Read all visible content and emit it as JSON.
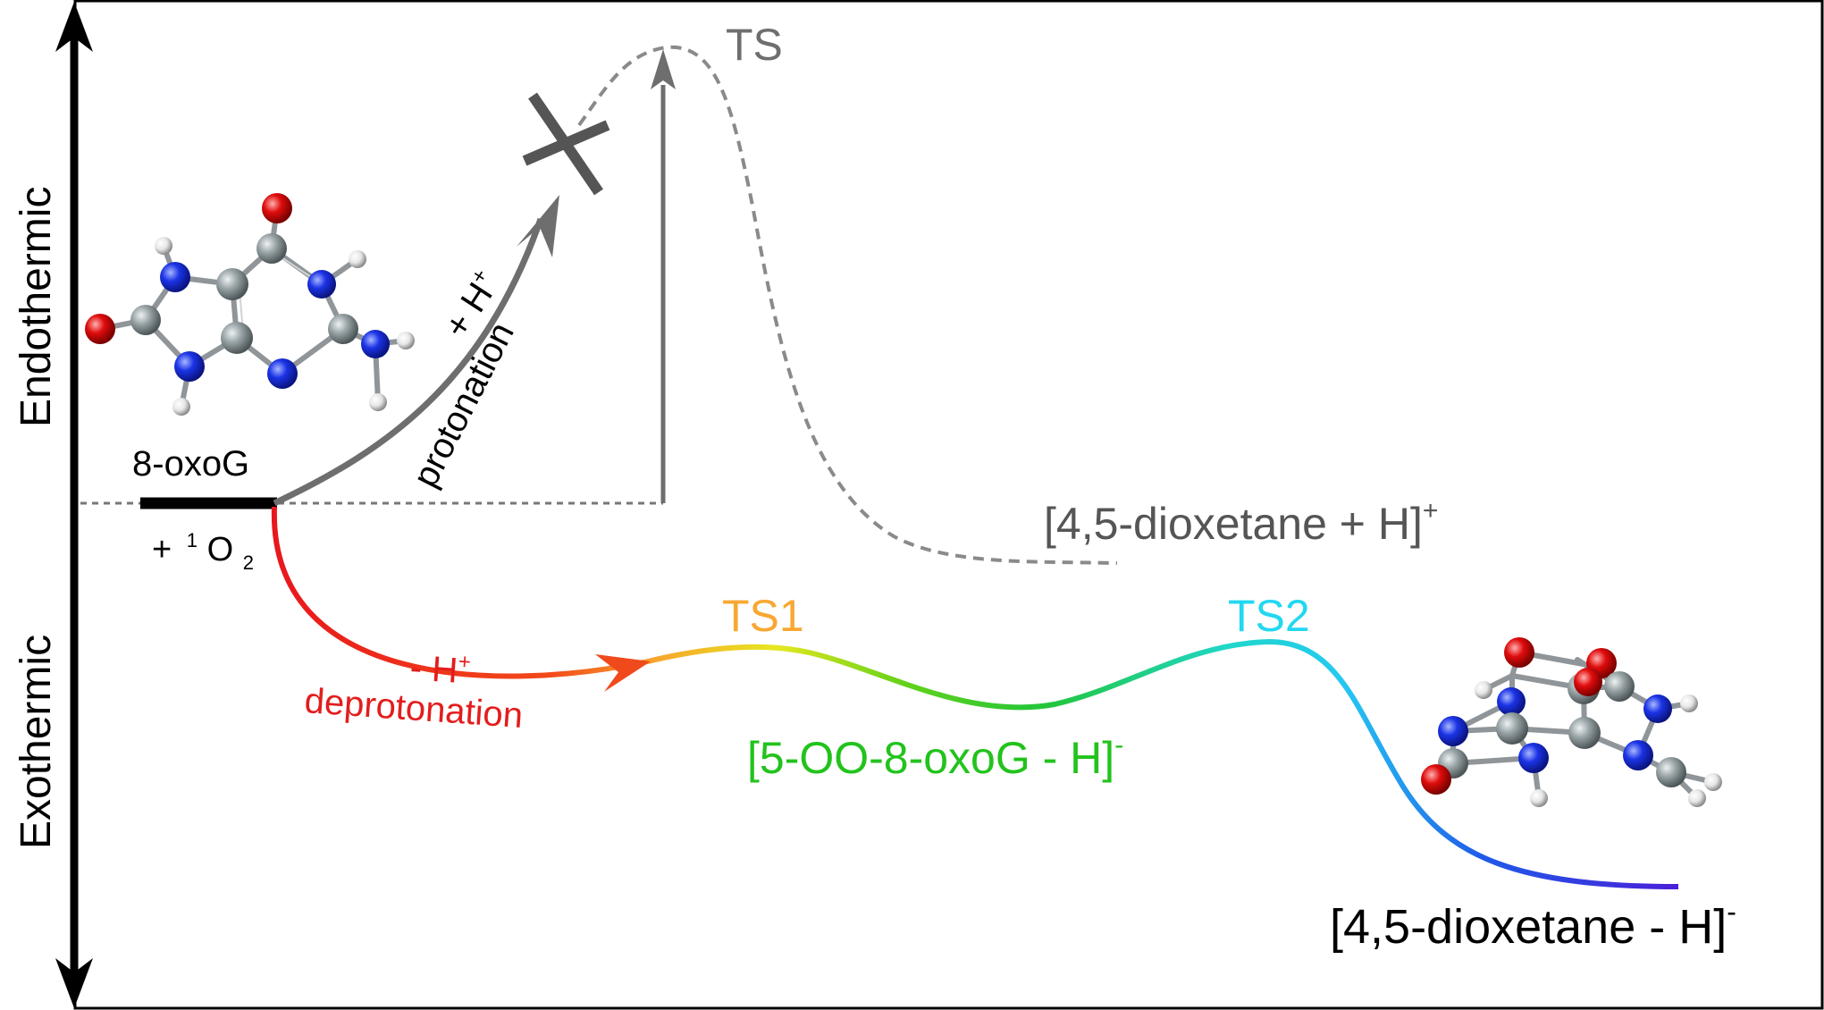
{
  "axis": {
    "endothermic": "Endothermic",
    "exothermic": "Exothermic"
  },
  "reactant": {
    "name": "8-oxoG",
    "plus": "+",
    "o2_sup": "1",
    "o2_base": "O",
    "o2_sub": "2"
  },
  "protonation": {
    "ion": "+ H",
    "ion_sup": "+",
    "label": "protonation"
  },
  "deprotonation": {
    "ion": "- H",
    "ion_sup": "+",
    "label": "deprotonation"
  },
  "ts": {
    "label": "TS"
  },
  "ts1": {
    "label": "TS1"
  },
  "ts2": {
    "label": "TS2"
  },
  "product_cation": {
    "text": "[4,5-dioxetane + H]",
    "sup": "+"
  },
  "intermediate": {
    "text": "[5-OO-8-oxoG - H]",
    "sup": "-"
  },
  "product_anion": {
    "text": "[4,5-dioxetane - H]",
    "sup": "-"
  },
  "colors": {
    "frame": "#000000",
    "gray_path": "#6e6e6e",
    "dashed_path": "#8a8a8a",
    "ts1": "#f7a833",
    "ts2": "#22d8f0",
    "intermediate": "#22c31c",
    "deprotonation": "#e31d1d",
    "atom_carbon": "#8f9a9d",
    "atom_nitrogen": "#1b33e6",
    "atom_oxygen": "#e00c0c",
    "atom_hydrogen": "#e8e8e8"
  },
  "icons": {
    "blocked_marker": "x-cross-icon",
    "molecule_reactant": "8-oxoG-molecule-icon",
    "molecule_product": "dioxetane-molecule-icon"
  }
}
